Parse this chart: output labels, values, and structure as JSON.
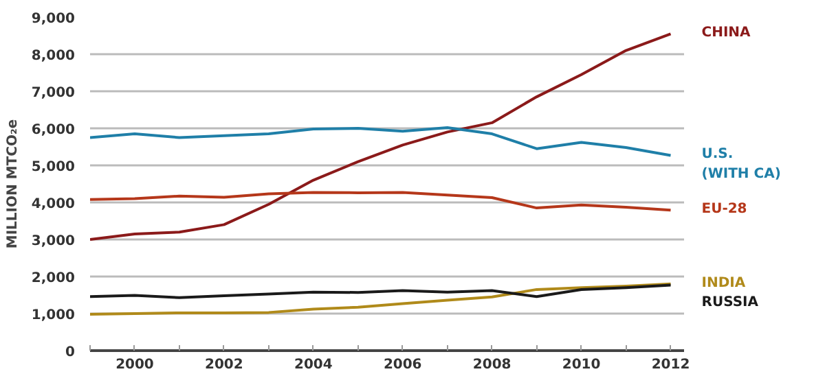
{
  "chart_data": {
    "type": "line",
    "ylabel": "MILLION MTCO₂e",
    "x": [
      1999,
      2000,
      2001,
      2002,
      2003,
      2004,
      2005,
      2006,
      2007,
      2008,
      2009,
      2010,
      2011,
      2012
    ],
    "xlim": [
      1999,
      2012.3
    ],
    "xticks": [
      {
        "value": 1999,
        "label": null
      },
      2000,
      {
        "value": 2001,
        "label": null
      },
      2002,
      {
        "value": 2003,
        "label": null
      },
      2004,
      {
        "value": 2005,
        "label": null
      },
      2006,
      {
        "value": 2007,
        "label": null
      },
      2008,
      {
        "value": 2009,
        "label": null
      },
      2010,
      {
        "value": 2011,
        "label": null
      },
      2012
    ],
    "ylim": [
      0,
      9000
    ],
    "yticks": [
      {
        "value": 0,
        "label": "0"
      },
      {
        "value": 1000,
        "label": "1,000"
      },
      {
        "value": 2000,
        "label": "2,000"
      },
      {
        "value": 3000,
        "label": "3,000"
      },
      {
        "value": 4000,
        "label": "4,000"
      },
      {
        "value": 5000,
        "label": "5,000"
      },
      {
        "value": 6000,
        "label": "6,000"
      },
      {
        "value": 7000,
        "label": "7,000"
      },
      {
        "value": 8000,
        "label": "8,000"
      },
      {
        "value": 9000,
        "label": "9,000"
      }
    ],
    "grid": "y",
    "line_style": "solid",
    "marker": "none",
    "series": [
      {
        "name": "CHINA",
        "color": "#8b1a1a",
        "values": [
          3000,
          3150,
          3200,
          3400,
          3950,
          4600,
          5100,
          5550,
          5900,
          6150,
          6850,
          7450,
          8100,
          8550
        ]
      },
      {
        "name": "U.S. (WITH CA)",
        "color": "#1f7fa8",
        "values": [
          5750,
          5850,
          5750,
          5800,
          5850,
          5980,
          6000,
          5920,
          6020,
          5850,
          5450,
          5620,
          5480,
          5270
        ]
      },
      {
        "name": "EU-28",
        "color": "#b5371a",
        "values": [
          4080,
          4100,
          4170,
          4140,
          4230,
          4270,
          4260,
          4270,
          4200,
          4130,
          3850,
          3930,
          3870,
          3790
        ]
      },
      {
        "name": "INDIA",
        "color": "#b08a1a",
        "values": [
          980,
          1000,
          1020,
          1020,
          1030,
          1120,
          1170,
          1270,
          1360,
          1450,
          1650,
          1700,
          1740,
          1800
        ]
      },
      {
        "name": "RUSSIA",
        "color": "#1a1a1a",
        "values": [
          1460,
          1490,
          1430,
          1480,
          1530,
          1580,
          1570,
          1620,
          1580,
          1620,
          1460,
          1650,
          1700,
          1770
        ]
      }
    ]
  }
}
